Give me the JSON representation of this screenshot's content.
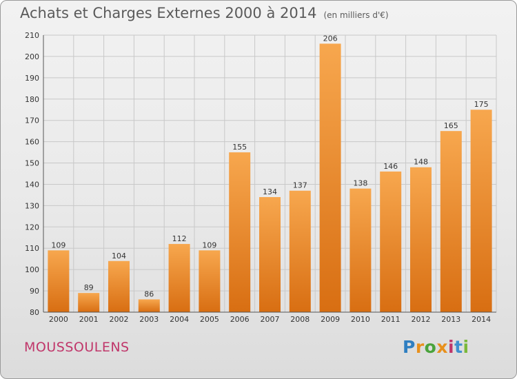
{
  "header": {
    "title": "Achats et Charges Externes 2000 à 2014",
    "subtitle": "(en milliers d'€)"
  },
  "commune": "MOUSSOULENS",
  "logo": {
    "text": "Proxiti",
    "letter_colors": [
      "#2f7fc1",
      "#e8901c",
      "#4aa33c",
      "#e8901c",
      "#c0366a",
      "#3f8fcf",
      "#7ab83a"
    ]
  },
  "colors": {
    "bar_top": "#f7a74e",
    "bar_bottom": "#d86e12",
    "grid": "#c8c8c8",
    "axis_text": "#333333"
  },
  "chart_data": {
    "type": "bar",
    "categories": [
      "2000",
      "2001",
      "2002",
      "2003",
      "2004",
      "2005",
      "2006",
      "2007",
      "2008",
      "2009",
      "2010",
      "2011",
      "2012",
      "2013",
      "2014"
    ],
    "values": [
      109,
      89,
      104,
      86,
      112,
      109,
      155,
      134,
      137,
      206,
      138,
      146,
      148,
      165,
      175
    ],
    "title": "Achats et Charges Externes 2000 à 2014",
    "subtitle": "(en milliers d'€)",
    "ylim": [
      80,
      210
    ],
    "yticks": [
      80,
      90,
      100,
      110,
      120,
      130,
      140,
      150,
      160,
      170,
      180,
      190,
      200,
      210
    ],
    "grid": true,
    "data_labels": true
  }
}
